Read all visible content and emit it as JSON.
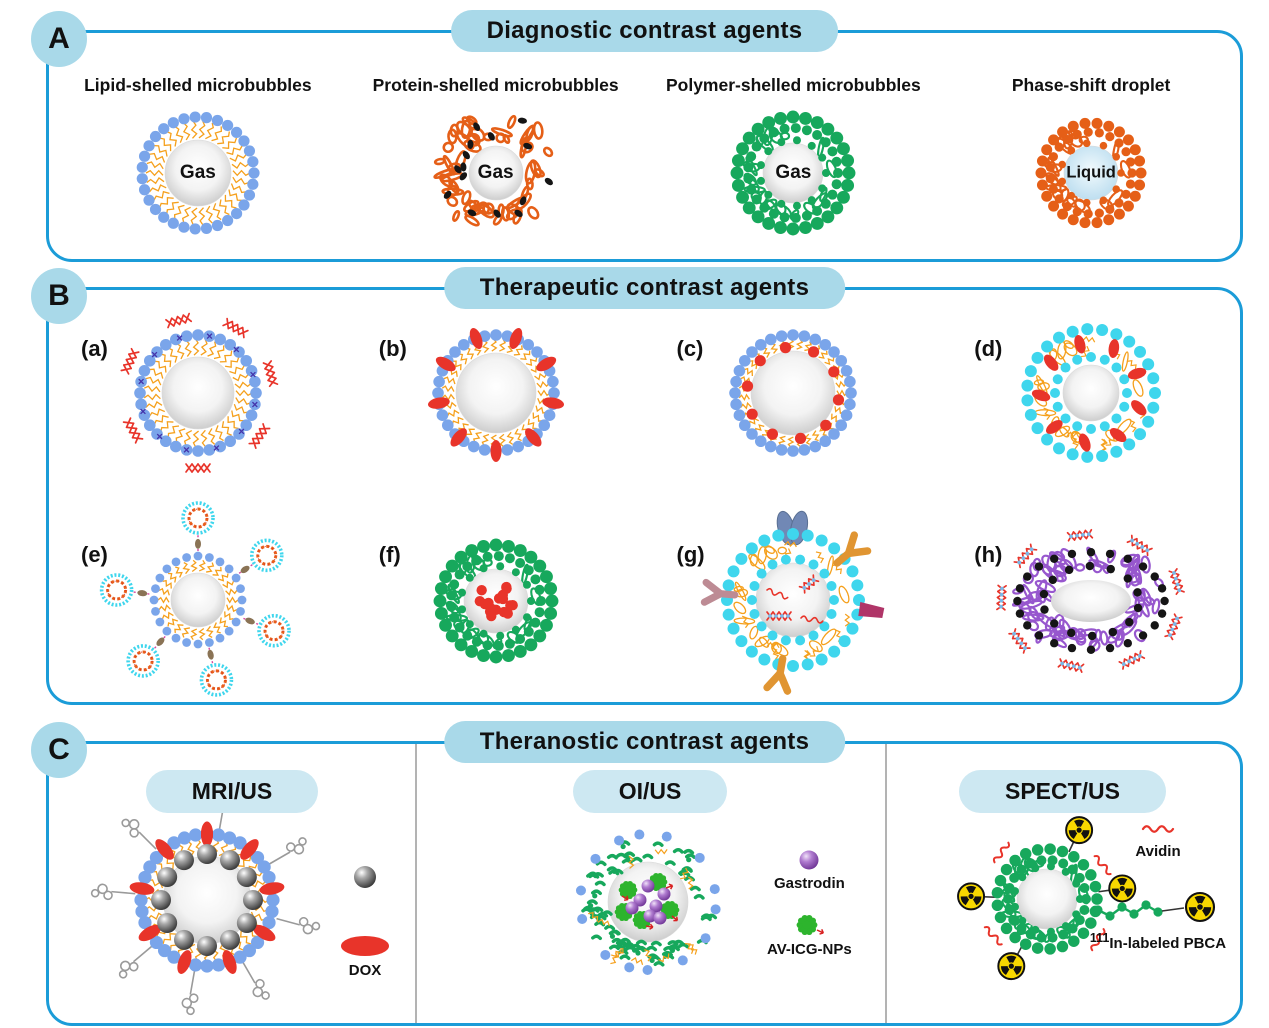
{
  "colors": {
    "panel_border": "#1b9cd8",
    "pill_bg": "#a9d9e9",
    "subpill_bg": "#cde8f2",
    "divider_gray": "#b3b3b3",
    "lipid_bead_blue": "#7aa5ea",
    "tail_orange": "#f5a01c",
    "drug_red": "#e8342a",
    "protein_orange": "#e55f17",
    "polymer_green": "#17a85c",
    "cyan_bead": "#3fd6ed",
    "purple_shell": "#9757ce",
    "gastrodin_purple": "#9b5fc0",
    "radiation_yellow": "#f8d800",
    "antibody_orange": "#e09532",
    "antibody_mauve": "#bd8b94",
    "antibody_magenta": "#b03568",
    "dimer_blue": "#7188b5",
    "linker_brown": "#8a7355",
    "link_pink": "#d544a0",
    "chain_gray": "#9a9a9a",
    "black_dot": "#151515"
  },
  "panels": {
    "a": {
      "badge": "A",
      "title": "Diagnostic contrast agents",
      "items": [
        {
          "label": "Lipid-shelled microbubbles",
          "core_label": "Gas",
          "figure": "lipid-shelled-microbubble-icon"
        },
        {
          "label": "Protein-shelled microbubbles",
          "core_label": "Gas",
          "figure": "protein-shelled-microbubble-icon"
        },
        {
          "label": "Polymer-shelled microbubbles",
          "core_label": "Gas",
          "figure": "polymer-shelled-microbubble-icon"
        },
        {
          "label": "Phase-shift droplet",
          "core_label": "Liquid",
          "figure": "phase-shift-droplet-icon"
        }
      ]
    },
    "b": {
      "badge": "B",
      "title": "Therapeutic contrast agents",
      "items": [
        {
          "label": "(a)",
          "figure": "nucleic-acid-loaded-microbubble-icon"
        },
        {
          "label": "(b)",
          "figure": "drug-in-shell-microbubble-icon"
        },
        {
          "label": "(c)",
          "figure": "drug-inner-shell-microbubble-icon"
        },
        {
          "label": "(d)",
          "figure": "double-layer-drug-microbubble-icon"
        },
        {
          "label": "(e)",
          "figure": "liposome-conjugated-microbubble-icon"
        },
        {
          "label": "(f)",
          "figure": "drug-core-polymer-microbubble-icon"
        },
        {
          "label": "(g)",
          "figure": "ligand-targeted-microbubble-icon"
        },
        {
          "label": "(h)",
          "figure": "gene-loaded-polymer-microbubble-icon"
        }
      ]
    },
    "c": {
      "badge": "C",
      "title": "Theranostic contrast agents",
      "columns": [
        {
          "title": "MRI/US",
          "figure": "mri-us-microbubble-icon",
          "legend": [
            {
              "icon": "iron-oxide-nanoparticle-icon",
              "label": ""
            },
            {
              "icon": "dox-drug-icon",
              "label": "DOX"
            }
          ]
        },
        {
          "title": "OI/US",
          "figure": "oi-us-microbubble-icon",
          "legend": [
            {
              "icon": "gastrodin-icon",
              "label": "Gastrodin"
            },
            {
              "icon": "av-icg-nanoparticle-icon",
              "label": "AV-ICG-NPs"
            }
          ]
        },
        {
          "title": "SPECT/US",
          "figure": "spect-us-microbubble-icon",
          "legend": [
            {
              "icon": "avidin-icon",
              "label": "Avidin"
            },
            {
              "icon": "in111-labeled-pbca-icon",
              "label_sup": "111",
              "label": "In-labeled PBCA"
            }
          ]
        }
      ]
    }
  }
}
